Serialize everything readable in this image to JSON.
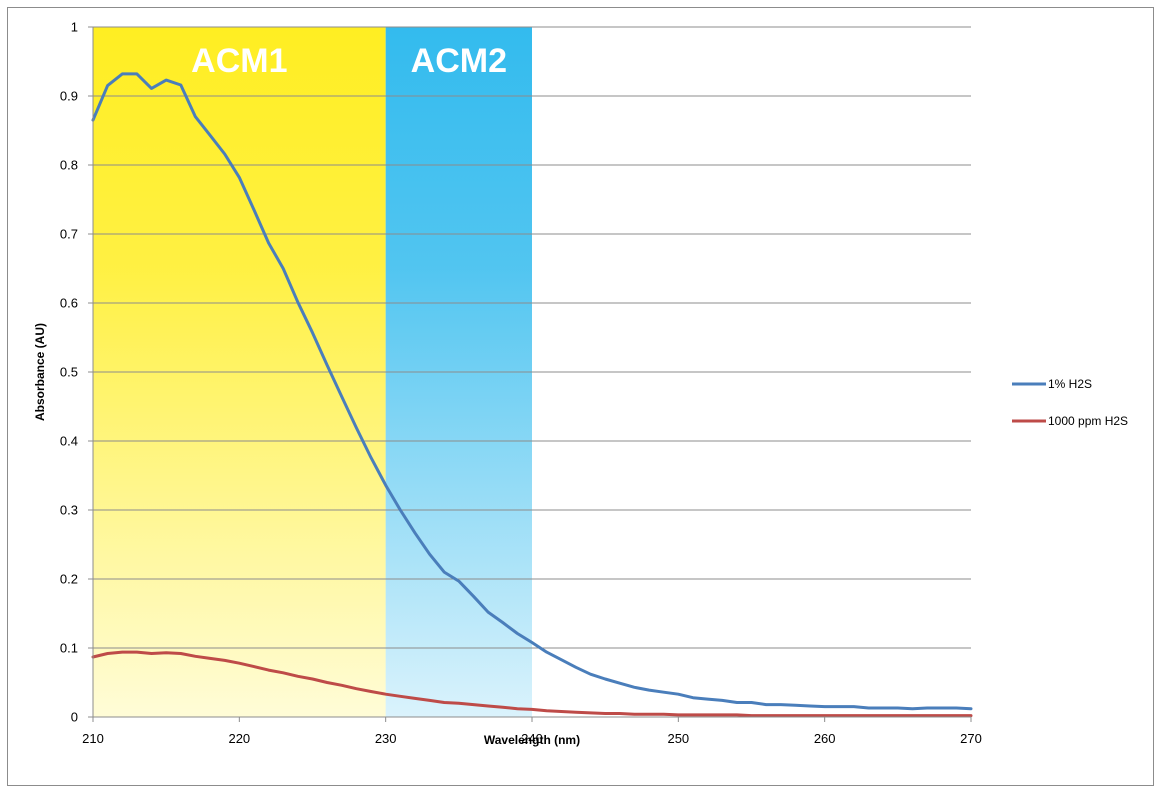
{
  "chart_data": {
    "type": "line",
    "title": "",
    "xlabel": "Wavelength (nm)",
    "ylabel": "Absorbance (AU)",
    "xlim": [
      210,
      270
    ],
    "ylim": [
      0,
      1
    ],
    "x_ticks": [
      "210",
      "220",
      "230",
      "240",
      "250",
      "260",
      "270"
    ],
    "y_ticks": [
      "0",
      "0.1",
      "0.2",
      "0.3",
      "0.4",
      "0.5",
      "0.6",
      "0.7",
      "0.8",
      "0.9",
      "1"
    ],
    "grid": "horizontal",
    "legend_position": "right",
    "regions": [
      {
        "label": "ACM1",
        "x_start": 210,
        "x_end": 230,
        "color": "#ffee22"
      },
      {
        "label": "ACM2",
        "x_start": 230,
        "x_end": 240,
        "color": "#33bbee"
      }
    ],
    "series": [
      {
        "name": "1% H2S",
        "color": "#4a7ebb",
        "x": [
          210,
          211,
          212,
          213,
          214,
          215,
          216,
          217,
          218,
          219,
          220,
          221,
          222,
          223,
          224,
          225,
          226,
          227,
          228,
          229,
          230,
          231,
          232,
          233,
          234,
          235,
          236,
          237,
          238,
          239,
          240,
          241,
          242,
          243,
          244,
          245,
          246,
          247,
          248,
          249,
          250,
          251,
          252,
          253,
          254,
          255,
          256,
          257,
          258,
          259,
          260,
          261,
          262,
          263,
          264,
          265,
          266,
          267,
          268,
          269,
          270
        ],
        "values": [
          0.865,
          0.915,
          0.932,
          0.932,
          0.911,
          0.923,
          0.916,
          0.87,
          0.843,
          0.816,
          0.782,
          0.735,
          0.687,
          0.65,
          0.601,
          0.557,
          0.51,
          0.464,
          0.419,
          0.376,
          0.336,
          0.3,
          0.267,
          0.236,
          0.21,
          0.197,
          0.175,
          0.152,
          0.137,
          0.121,
          0.108,
          0.094,
          0.083,
          0.072,
          0.062,
          0.055,
          0.049,
          0.043,
          0.039,
          0.036,
          0.033,
          0.028,
          0.026,
          0.024,
          0.021,
          0.021,
          0.018,
          0.018,
          0.017,
          0.016,
          0.015,
          0.015,
          0.015,
          0.013,
          0.013,
          0.013,
          0.012,
          0.013,
          0.013,
          0.013,
          0.012
        ]
      },
      {
        "name": "1000 ppm H2S",
        "color": "#be4b48",
        "x": [
          210,
          211,
          212,
          213,
          214,
          215,
          216,
          217,
          218,
          219,
          220,
          221,
          222,
          223,
          224,
          225,
          226,
          227,
          228,
          229,
          230,
          231,
          232,
          233,
          234,
          235,
          236,
          237,
          238,
          239,
          240,
          241,
          242,
          243,
          244,
          245,
          246,
          247,
          248,
          249,
          250,
          251,
          252,
          253,
          254,
          255,
          256,
          257,
          258,
          259,
          260,
          261,
          262,
          263,
          264,
          265,
          266,
          267,
          268,
          269,
          270
        ],
        "values": [
          0.087,
          0.092,
          0.094,
          0.094,
          0.092,
          0.093,
          0.092,
          0.088,
          0.085,
          0.082,
          0.078,
          0.073,
          0.068,
          0.064,
          0.059,
          0.055,
          0.05,
          0.046,
          0.041,
          0.037,
          0.033,
          0.03,
          0.027,
          0.024,
          0.021,
          0.02,
          0.018,
          0.016,
          0.014,
          0.012,
          0.011,
          0.009,
          0.008,
          0.007,
          0.006,
          0.005,
          0.005,
          0.004,
          0.004,
          0.004,
          0.003,
          0.003,
          0.003,
          0.003,
          0.003,
          0.002,
          0.002,
          0.002,
          0.002,
          0.002,
          0.002,
          0.002,
          0.002,
          0.002,
          0.002,
          0.002,
          0.002,
          0.002,
          0.002,
          0.002,
          0.002
        ]
      }
    ]
  }
}
